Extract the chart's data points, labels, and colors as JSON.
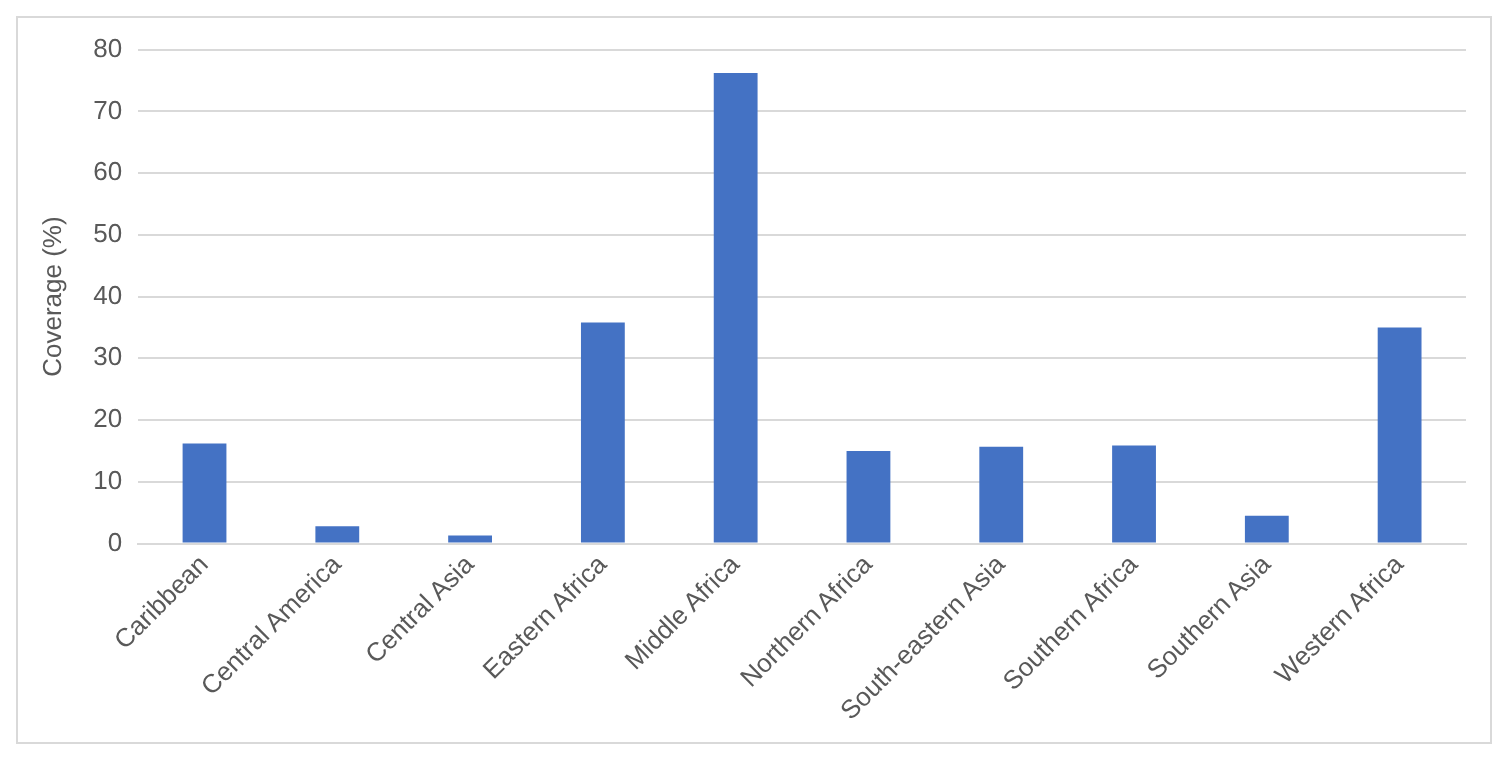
{
  "chart_data": {
    "type": "bar",
    "ylabel": "Coverage (%)",
    "categories": [
      "Caribbean",
      "Central America",
      "Central Asia",
      "Eastern Africa",
      "Middle Africa",
      "Northern Africa",
      "South-eastern Asia",
      "Southern Africa",
      "Southern Asia",
      "Western Africa"
    ],
    "values": [
      16.2,
      2.8,
      1.3,
      35.8,
      76.2,
      15.0,
      15.7,
      15.9,
      4.5,
      35.0
    ],
    "color": "#4472c4",
    "ylim": [
      0,
      80
    ],
    "yticks": [
      0,
      10,
      20,
      30,
      40,
      50,
      60,
      70,
      80
    ],
    "grid": "y",
    "legend": false
  }
}
